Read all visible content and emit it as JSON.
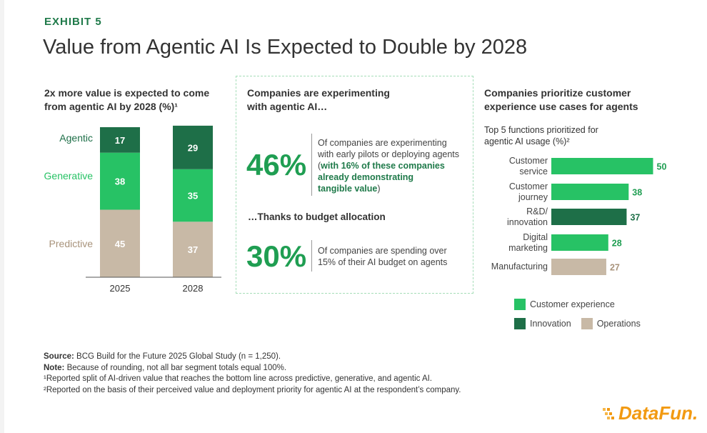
{
  "exhibit_label": "EXHIBIT 5",
  "title": "Value from Agentic AI Is Expected to Double by 2028",
  "colors": {
    "customer_experience": "#27c265",
    "innovation": "#1e6f48",
    "operations": "#c8b9a6",
    "accent": "#1f9e52"
  },
  "left_panel": {
    "heading_line1": "2x more value is expected to come",
    "heading_line2": "from agentic AI by 2028 (%)¹",
    "series_labels": {
      "agentic": "Agentic",
      "generative": "Generative",
      "predictive": "Predictive"
    }
  },
  "middle_panel": {
    "heading_line1": "Companies are experimenting",
    "heading_line2": "with agentic AI…",
    "stat1": {
      "value": "46%",
      "text_line1": "Of companies are experimenting",
      "text_line2": "with early pilots or deploying agents",
      "text_open": "(",
      "text_strong1": "with 16% of these companies",
      "text_strong2": "already demonstrating",
      "text_strong3": "tangible value",
      "text_close": ")"
    },
    "subheading": "…Thanks to budget allocation",
    "stat2": {
      "value": "30%",
      "text_line1": "Of companies are spending over",
      "text_line2": "15% of their AI budget on agents"
    }
  },
  "right_panel": {
    "heading_line1": "Companies prioritize customer",
    "heading_line2": "experience use cases for agents",
    "subheading_line1": "Top 5 functions prioritized for",
    "subheading_line2": "agentic AI usage (%)²",
    "legend": [
      {
        "label": "Customer experience",
        "color": "#27c265"
      },
      {
        "label": "Innovation",
        "color": "#1e6f48"
      },
      {
        "label": "Operations",
        "color": "#c8b9a6"
      }
    ]
  },
  "chart_data": [
    {
      "type": "bar",
      "stacked": true,
      "title": "2x more value is expected to come from agentic AI by 2028 (%)¹",
      "categories": [
        "2025",
        "2028"
      ],
      "series": [
        {
          "name": "Predictive",
          "values": [
            45,
            37
          ],
          "color": "#c8b9a6"
        },
        {
          "name": "Generative",
          "values": [
            38,
            35
          ],
          "color": "#27c265"
        },
        {
          "name": "Agentic",
          "values": [
            17,
            29
          ],
          "color": "#1e6f48"
        }
      ],
      "ylim": [
        0,
        100
      ]
    },
    {
      "type": "bar",
      "orientation": "horizontal",
      "title": "Top 5 functions prioritized for agentic AI usage (%)²",
      "categories": [
        [
          "Customer",
          "service"
        ],
        [
          "Customer",
          "journey"
        ],
        [
          "R&D/",
          "innovation"
        ],
        [
          "Digital",
          "marketing"
        ],
        [
          "Manufacturing"
        ]
      ],
      "values": [
        50,
        38,
        37,
        28,
        27
      ],
      "groups": [
        "Customer experience",
        "Customer experience",
        "Innovation",
        "Customer experience",
        "Operations"
      ]
    }
  ],
  "footnotes": {
    "source_label": "Source:",
    "source_text": " BCG Build for the Future 2025 Global Study (n = 1,250).",
    "note_label": "Note:",
    "note_text": " Because of rounding, not all bar segment totals equal 100%.",
    "fn1": "¹Reported split of AI-driven value that reaches the bottom line across predictive, generative, and agentic AI.",
    "fn2": "²Reported on the basis of their perceived value and deployment priority for agentic AI at the respondent’s company."
  },
  "brand": "DataFun."
}
